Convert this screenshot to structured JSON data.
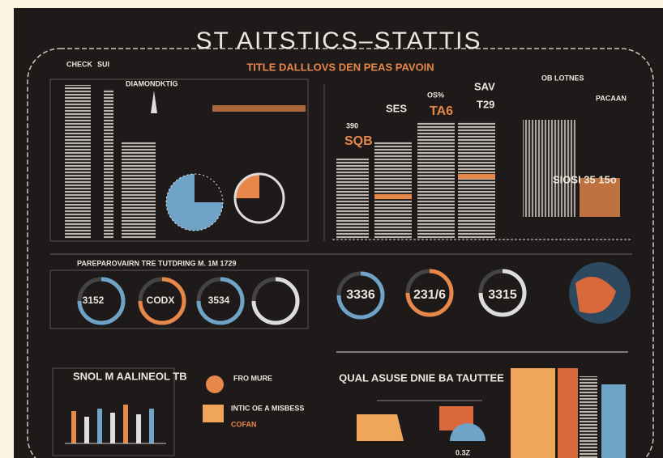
{
  "header": {
    "title": "ST AITSTICS–STATTIS",
    "subtitle": "TITLE DALLLOVS DEN PEAS PAVOIN"
  },
  "top_left": {
    "labels": [
      "CHECK",
      "SUI",
      "DIAMONDKTIG"
    ]
  },
  "top_middle": {
    "labels": [
      "SAV",
      "OS%",
      "T29",
      "SES",
      "TA6",
      "390",
      "SQB"
    ]
  },
  "top_right": {
    "labels": [
      "OB LOTNES",
      "PACAAN",
      "SIOSI 35 15o"
    ]
  },
  "middle": {
    "heading": "PAREPAROVAIRN TRE TUTDRING M. 1M 1729",
    "donuts": [
      "3152",
      "CODX",
      "3534",
      "3336",
      "231/6",
      "3315"
    ]
  },
  "bottom_left": {
    "heading": "SNOL M AALINEOL TB",
    "labels": [
      "FRO MURE",
      "INTIC OE A MISBESS",
      "COFAN"
    ]
  },
  "bottom_center": {
    "heading": "QUAL ASUSE DNIE BA TAUTTEE",
    "labels": [
      "0.3Z"
    ]
  }
}
